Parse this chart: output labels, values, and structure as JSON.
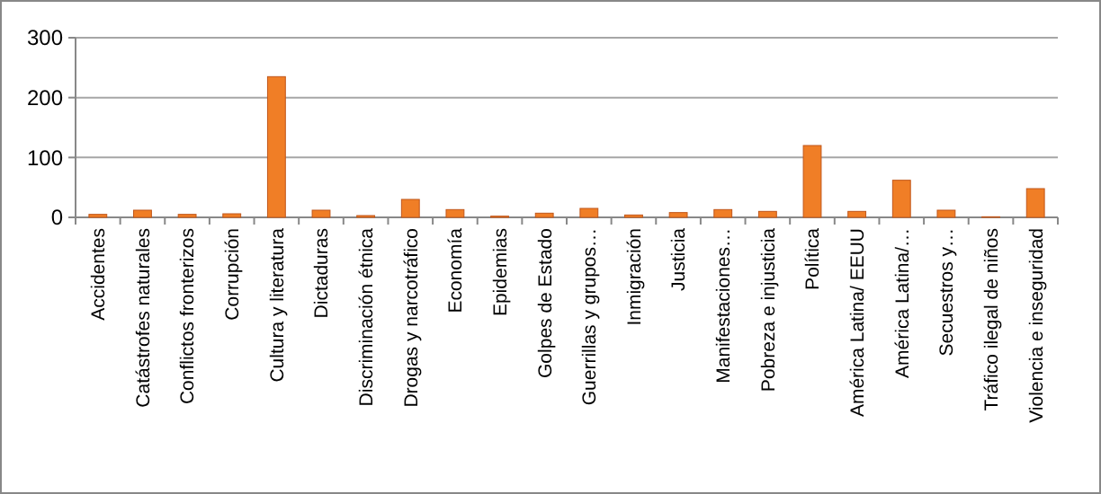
{
  "chart_data": {
    "type": "bar",
    "categories": [
      "Accidentes",
      "Catástrofes naturales",
      "Conflictos fronterizos",
      "Corrupción",
      "Cultura y literatura",
      "Dictaduras",
      "Discriminación étnica",
      "Drogas y narcotráfico",
      "Economía",
      "Epidemias",
      "Golpes de Estado",
      "Guerrillas y grupos…",
      "Inmigración",
      "Justicia",
      "Manifestaciones…",
      "Pobreza e injusticia",
      "Política",
      "América Latina/ EEUU",
      "América Latina/…",
      "Secuestros y…",
      "Tráfico ilegal de niños",
      "Violencia e inseguridad"
    ],
    "values": [
      5,
      12,
      5,
      6,
      235,
      12,
      3,
      30,
      13,
      2,
      7,
      15,
      4,
      8,
      13,
      10,
      120,
      10,
      62,
      12,
      1,
      48
    ],
    "color": "#f07e26",
    "ylim": [
      0,
      300
    ],
    "yticks": [
      0,
      100,
      200,
      300
    ],
    "grid": "y"
  }
}
